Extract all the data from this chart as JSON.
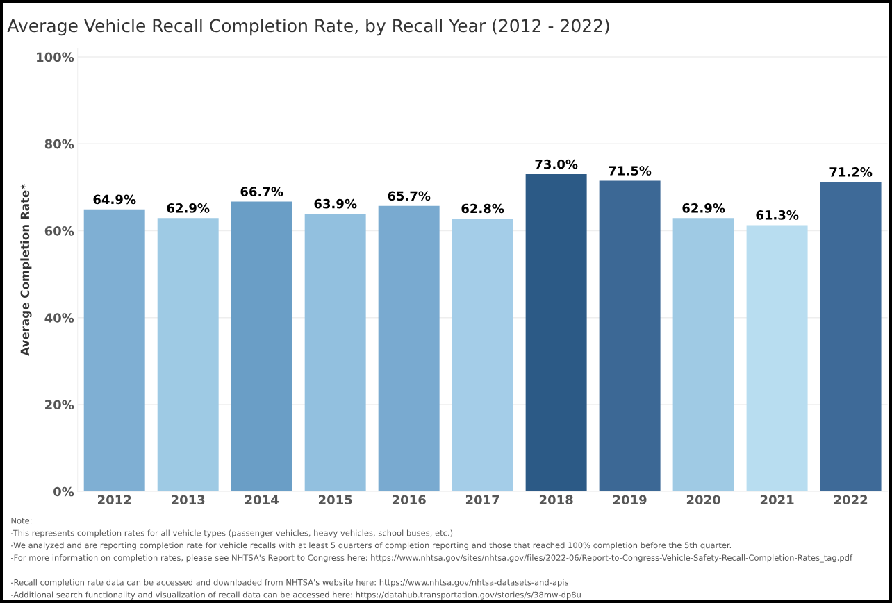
{
  "chart_data": {
    "type": "bar",
    "title": "Average Vehicle Recall Completion Rate, by Recall Year (2012 - 2022)",
    "ylabel": "Average Completion Rate*",
    "categories": [
      "2012",
      "2013",
      "2014",
      "2015",
      "2016",
      "2017",
      "2018",
      "2019",
      "2020",
      "2021",
      "2022"
    ],
    "values": [
      64.9,
      62.9,
      66.7,
      63.9,
      65.7,
      62.8,
      73.0,
      71.5,
      62.9,
      61.3,
      71.2
    ],
    "value_labels": [
      "64.9%",
      "62.9%",
      "66.7%",
      "63.9%",
      "65.7%",
      "62.8%",
      "73.0%",
      "71.5%",
      "62.9%",
      "61.3%",
      "71.2%"
    ],
    "colors": [
      "#7fafd3",
      "#9ecae4",
      "#6a9ec6",
      "#92c0df",
      "#79aad0",
      "#a4cde8",
      "#2c5a86",
      "#3c6895",
      "#9fcae4",
      "#b8ddf0",
      "#3e6a98"
    ],
    "ylim": [
      0,
      102
    ],
    "yticks": [
      {
        "value": 0,
        "label": "0%"
      },
      {
        "value": 20,
        "label": "20%"
      },
      {
        "value": 40,
        "label": "40%"
      },
      {
        "value": 60,
        "label": "60%"
      },
      {
        "value": 80,
        "label": "80%"
      },
      {
        "value": 100,
        "label": "100%"
      }
    ],
    "grid": "y",
    "legend": false,
    "annotations": [
      "Note:",
      "-This represents completion rates for all vehicle types (passenger vehicles, heavy vehicles, school buses, etc.)",
      "-We analyzed and are reporting completion rate for vehicle recalls with at least 5 quarters of completion reporting and those that reached 100% completion before the 5th quarter.",
      "-For more information on completion rates, please see NHTSA's Report to Congress here: https://www.nhtsa.gov/sites/nhtsa.gov/files/2022-06/Report-to-Congress-Vehicle-Safety-Recall-Completion-Rates_tag.pdf",
      "-Recall completion rate data can be accessed and downloaded from NHTSA's website here: https://www.nhtsa.gov/nhtsa-datasets-and-apis",
      "-Additional search functionality and visualization of recall data can be accessed here: https://datahub.transportation.gov/stories/s/38mw-dp8u"
    ]
  }
}
